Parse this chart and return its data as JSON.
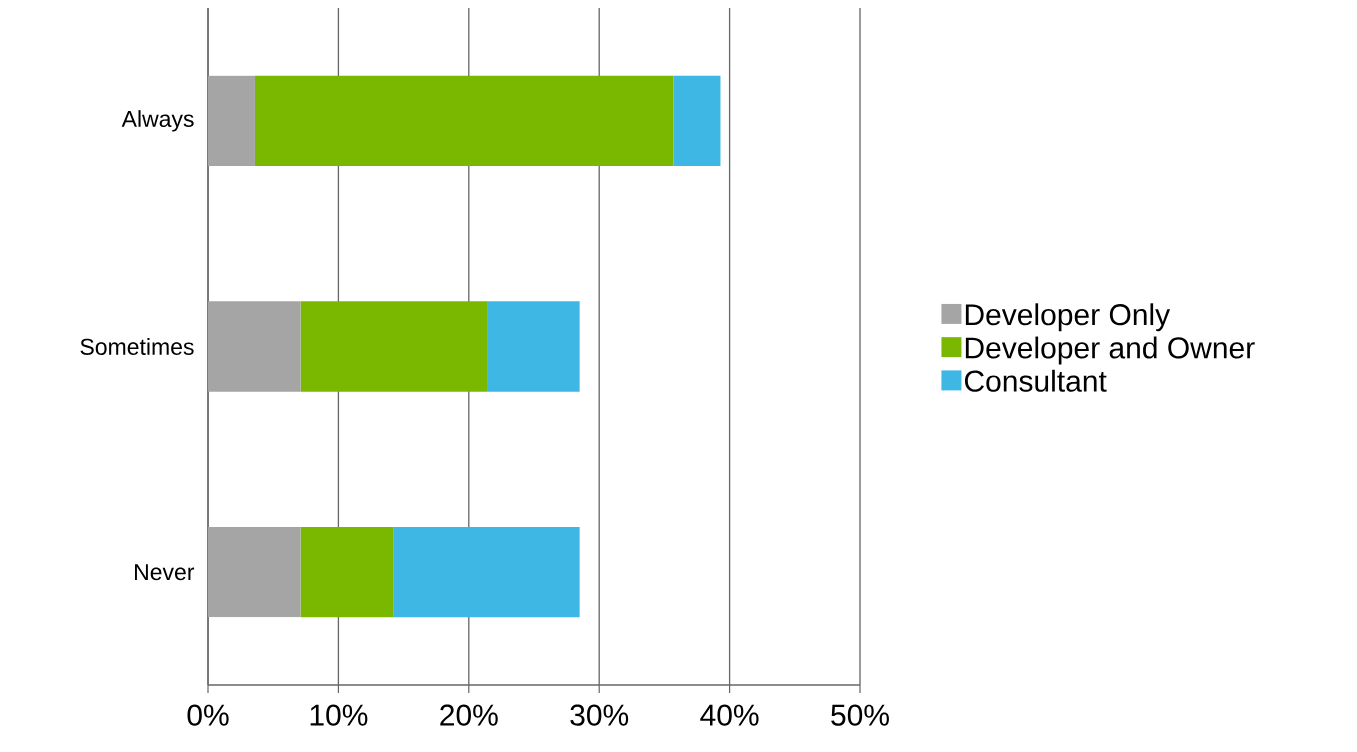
{
  "chart_data": {
    "type": "bar",
    "orientation": "horizontal",
    "stacked": true,
    "categories": [
      "Always",
      "Sometimes",
      "Never"
    ],
    "series": [
      {
        "name": "Developer Only",
        "color": "#a5a5a5",
        "values": [
          3.6,
          7.1,
          7.1
        ]
      },
      {
        "name": "Developer and Owner",
        "color": "#7ab800",
        "values": [
          32.1,
          14.3,
          7.1
        ]
      },
      {
        "name": "Consultant",
        "color": "#3eb7e4",
        "values": [
          3.6,
          7.1,
          14.3
        ]
      }
    ],
    "xlim": [
      0,
      50
    ],
    "xticks": [
      {
        "value": 0,
        "label": "0%"
      },
      {
        "value": 10,
        "label": "10%"
      },
      {
        "value": 20,
        "label": "20%"
      },
      {
        "value": 30,
        "label": "30%"
      },
      {
        "value": 40,
        "label": "40%"
      },
      {
        "value": 50,
        "label": "50%"
      }
    ],
    "grid": "x",
    "legend": "right"
  }
}
